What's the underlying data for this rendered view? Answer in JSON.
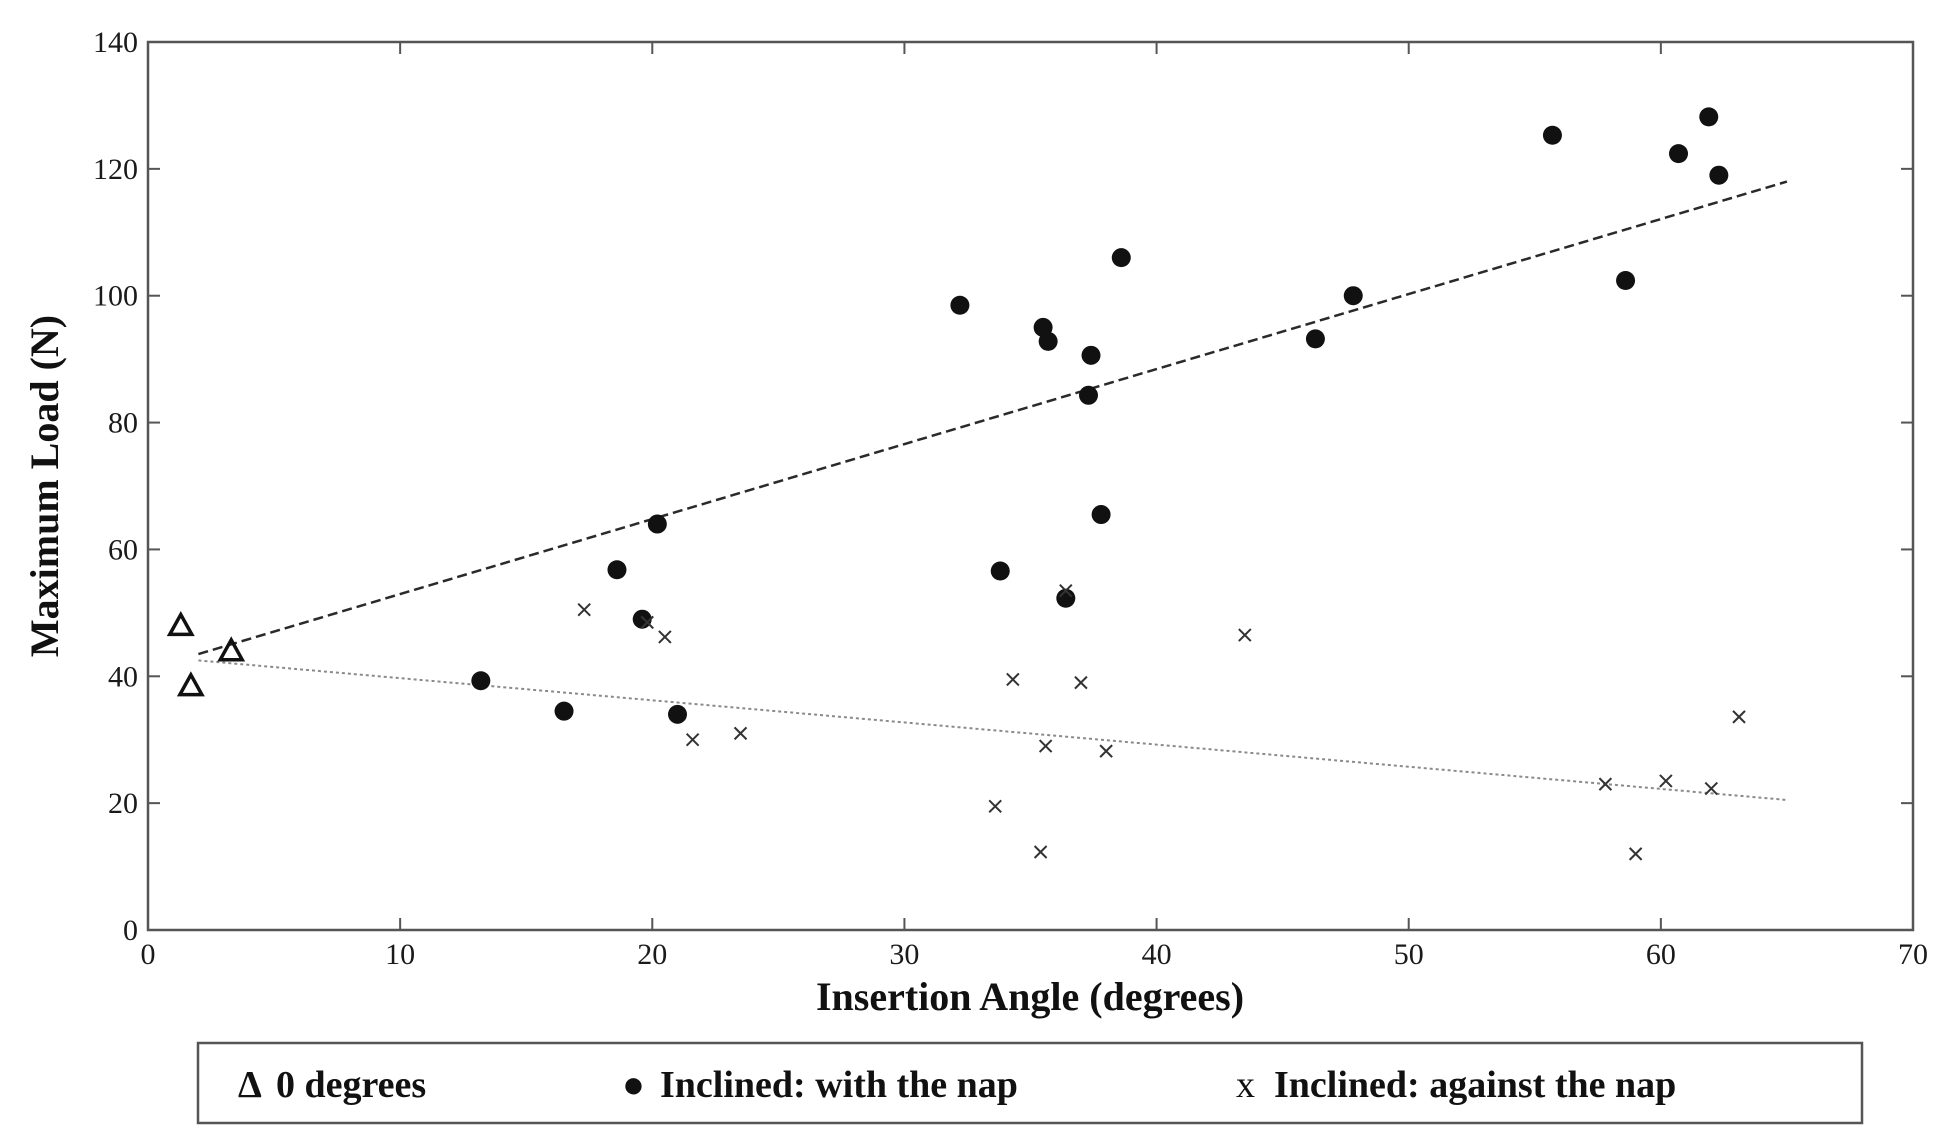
{
  "chart_data": {
    "type": "scatter",
    "title": "",
    "xlabel": "Insertion Angle (degrees)",
    "ylabel": "Maximum Load (N)",
    "xlim": [
      0,
      70
    ],
    "ylim": [
      0,
      140
    ],
    "xticks": [
      0,
      10,
      20,
      30,
      40,
      50,
      60,
      70
    ],
    "yticks": [
      0,
      20,
      40,
      60,
      80,
      100,
      120,
      140
    ],
    "grid": false,
    "legend_position": "bottom",
    "series": [
      {
        "name": "0 degrees",
        "legend_label": "0 degrees",
        "legend_symbol": "Δ",
        "marker": "triangle",
        "points": [
          [
            1.3,
            48
          ],
          [
            1.7,
            38.5
          ],
          [
            3.3,
            44
          ]
        ]
      },
      {
        "name": "Inclined: with the nap",
        "legend_label": "Inclined: with the nap",
        "legend_symbol": "●",
        "marker": "circle",
        "points": [
          [
            13.2,
            39.3
          ],
          [
            16.5,
            34.5
          ],
          [
            18.6,
            56.8
          ],
          [
            19.6,
            49
          ],
          [
            20.2,
            64
          ],
          [
            21.0,
            34
          ],
          [
            32.2,
            98.5
          ],
          [
            33.8,
            56.6
          ],
          [
            35.5,
            95
          ],
          [
            35.7,
            92.8
          ],
          [
            36.4,
            52.3
          ],
          [
            37.3,
            84.3
          ],
          [
            37.4,
            90.6
          ],
          [
            37.8,
            65.5
          ],
          [
            38.6,
            106
          ],
          [
            46.3,
            93.2
          ],
          [
            47.8,
            100
          ],
          [
            55.7,
            125.3
          ],
          [
            58.6,
            102.4
          ],
          [
            60.7,
            122.4
          ],
          [
            61.9,
            128.2
          ],
          [
            62.3,
            119
          ]
        ],
        "trendline": {
          "style": "dashed",
          "from": [
            2,
            43.5
          ],
          "to": [
            65,
            118
          ]
        }
      },
      {
        "name": "Inclined: against the nap",
        "legend_label": "Inclined: against the nap",
        "legend_symbol": "x",
        "marker": "x",
        "points": [
          [
            17.3,
            50.5
          ],
          [
            19.8,
            48.5
          ],
          [
            20.5,
            46.2
          ],
          [
            21.6,
            30
          ],
          [
            23.5,
            31
          ],
          [
            33.6,
            19.5
          ],
          [
            34.3,
            39.5
          ],
          [
            35.4,
            12.3
          ],
          [
            35.6,
            29
          ],
          [
            36.4,
            53.5
          ],
          [
            37.0,
            39
          ],
          [
            38.0,
            28.2
          ],
          [
            43.5,
            46.5
          ],
          [
            57.8,
            23
          ],
          [
            59.0,
            12
          ],
          [
            60.2,
            23.5
          ],
          [
            62.0,
            22.3
          ],
          [
            63.1,
            33.6
          ]
        ],
        "trendline": {
          "style": "dotted",
          "from": [
            2,
            42.5
          ],
          "to": [
            65,
            20.5
          ]
        }
      }
    ]
  },
  "colors": {
    "axis": "#555555",
    "marker": "#111111",
    "trend_with": "#2a2a2a",
    "trend_against": "#8a8a8a",
    "text": "#111111"
  }
}
